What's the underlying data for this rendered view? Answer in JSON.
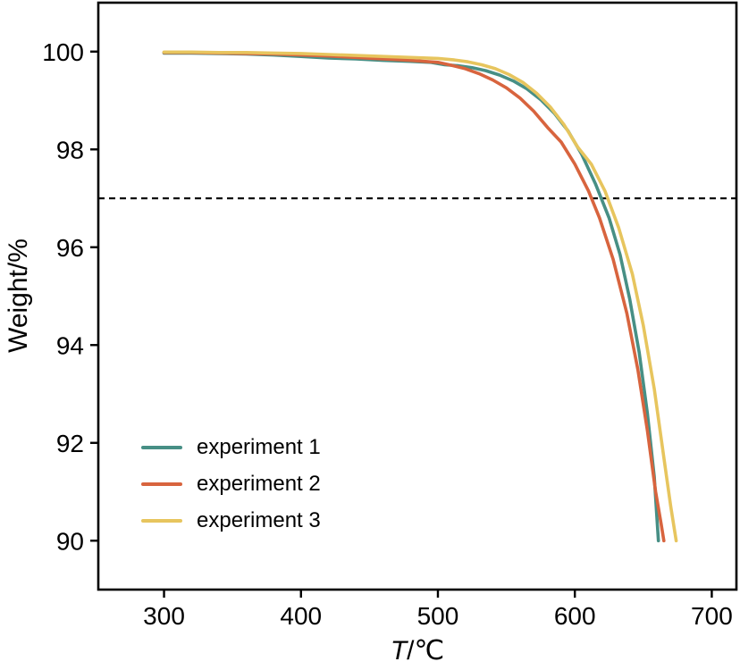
{
  "chart_data": {
    "type": "line",
    "title": "",
    "xlabel_variable": "T",
    "xlabel_unit": "/℃",
    "ylabel": "Weight/%",
    "xlim": [
      252,
      718
    ],
    "ylim": [
      89,
      101
    ],
    "xticks": [
      300,
      400,
      500,
      600,
      700
    ],
    "yticks": [
      90,
      92,
      94,
      96,
      98,
      100
    ],
    "grid": false,
    "legend_position": "lower-left-inside",
    "axis_color": "#000000",
    "reference_line": {
      "y": 97,
      "style": "dashed",
      "color": "#000000"
    },
    "series": [
      {
        "name": "experiment 1",
        "color": "#478f85",
        "points": [
          [
            300,
            99.97
          ],
          [
            320,
            99.97
          ],
          [
            340,
            99.96
          ],
          [
            360,
            99.95
          ],
          [
            380,
            99.93
          ],
          [
            400,
            99.9
          ],
          [
            420,
            99.87
          ],
          [
            440,
            99.85
          ],
          [
            460,
            99.82
          ],
          [
            480,
            99.8
          ],
          [
            495,
            99.78
          ],
          [
            505,
            99.73
          ],
          [
            515,
            99.71
          ],
          [
            525,
            99.67
          ],
          [
            535,
            99.61
          ],
          [
            545,
            99.52
          ],
          [
            555,
            99.4
          ],
          [
            565,
            99.24
          ],
          [
            575,
            99.02
          ],
          [
            585,
            98.74
          ],
          [
            595,
            98.38
          ],
          [
            605,
            97.9
          ],
          [
            615,
            97.3
          ],
          [
            625,
            96.6
          ],
          [
            633,
            95.85
          ],
          [
            640,
            94.95
          ],
          [
            647,
            93.85
          ],
          [
            653,
            92.6
          ],
          [
            658,
            91.3
          ],
          [
            661,
            90.0
          ]
        ]
      },
      {
        "name": "experiment 2",
        "color": "#d8643e",
        "points": [
          [
            300,
            99.98
          ],
          [
            320,
            99.98
          ],
          [
            340,
            99.97
          ],
          [
            360,
            99.96
          ],
          [
            380,
            99.95
          ],
          [
            400,
            99.93
          ],
          [
            420,
            99.91
          ],
          [
            440,
            99.88
          ],
          [
            460,
            99.85
          ],
          [
            480,
            99.82
          ],
          [
            500,
            99.78
          ],
          [
            510,
            99.72
          ],
          [
            520,
            99.65
          ],
          [
            530,
            99.55
          ],
          [
            540,
            99.42
          ],
          [
            550,
            99.26
          ],
          [
            560,
            99.05
          ],
          [
            570,
            98.78
          ],
          [
            580,
            98.45
          ],
          [
            590,
            98.15
          ],
          [
            600,
            97.7
          ],
          [
            610,
            97.15
          ],
          [
            618,
            96.6
          ],
          [
            628,
            95.75
          ],
          [
            638,
            94.65
          ],
          [
            646,
            93.5
          ],
          [
            653,
            92.25
          ],
          [
            659,
            91.0
          ],
          [
            663,
            90.35
          ],
          [
            665,
            90.0
          ]
        ]
      },
      {
        "name": "experiment 3",
        "color": "#e7c55e",
        "points": [
          [
            300,
            99.99
          ],
          [
            320,
            99.99
          ],
          [
            340,
            99.98
          ],
          [
            360,
            99.98
          ],
          [
            380,
            99.97
          ],
          [
            400,
            99.96
          ],
          [
            420,
            99.94
          ],
          [
            440,
            99.92
          ],
          [
            460,
            99.9
          ],
          [
            480,
            99.88
          ],
          [
            500,
            99.86
          ],
          [
            512,
            99.83
          ],
          [
            522,
            99.79
          ],
          [
            532,
            99.73
          ],
          [
            542,
            99.65
          ],
          [
            552,
            99.53
          ],
          [
            562,
            99.37
          ],
          [
            572,
            99.15
          ],
          [
            582,
            98.87
          ],
          [
            592,
            98.51
          ],
          [
            602,
            98.05
          ],
          [
            612,
            97.7
          ],
          [
            622,
            97.15
          ],
          [
            632,
            96.4
          ],
          [
            642,
            95.45
          ],
          [
            650,
            94.4
          ],
          [
            658,
            93.1
          ],
          [
            665,
            91.7
          ],
          [
            670,
            90.7
          ],
          [
            674,
            90.0
          ]
        ]
      }
    ]
  }
}
